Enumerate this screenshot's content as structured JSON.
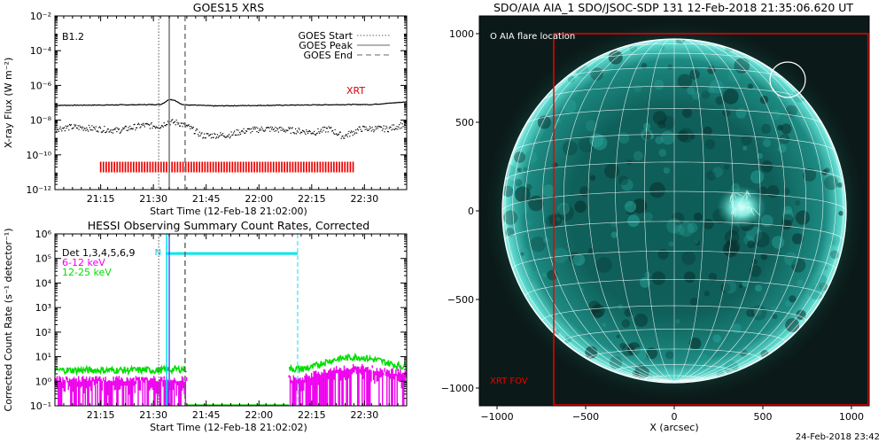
{
  "chart_data": [
    {
      "type": "line",
      "title": "GOES15 XRS",
      "xlabel": "Start Time (12-Feb-18 21:02:00)",
      "ylabel": "X-ray Flux (W m⁻²)",
      "yscale": "log",
      "ylim_exp": [
        -12,
        -2
      ],
      "xlim_min": [
        0,
        100
      ],
      "x_ticks": [
        {
          "t": 13,
          "label": "21:15"
        },
        {
          "t": 28,
          "label": "21:30"
        },
        {
          "t": 43,
          "label": "21:45"
        },
        {
          "t": 58,
          "label": "22:00"
        },
        {
          "t": 73,
          "label": "22:15"
        },
        {
          "t": 88,
          "label": "22:30"
        }
      ],
      "y_ticks": [
        {
          "exp": -12,
          "label": "10⁻¹²"
        },
        {
          "exp": -10,
          "label": "10⁻¹⁰"
        },
        {
          "exp": -8,
          "label": "10⁻⁸"
        },
        {
          "exp": -6,
          "label": "10⁻⁶"
        },
        {
          "exp": -4,
          "label": "10⁻⁴"
        },
        {
          "exp": -2,
          "label": "10⁻²"
        }
      ],
      "class_label": "B1.2",
      "legend": [
        {
          "name": "GOES Start",
          "style": "dotted"
        },
        {
          "name": "GOES Peak",
          "style": "solid"
        },
        {
          "name": "GOES End",
          "style": "dashed"
        }
      ],
      "markers": {
        "start": 29.5,
        "peak": 32.5,
        "end": 37.0
      },
      "long_channel_exp": [
        [
          0,
          -7.15
        ],
        [
          20,
          -7.12
        ],
        [
          30,
          -7.1
        ],
        [
          31,
          -7.0
        ],
        [
          32.5,
          -6.8
        ],
        [
          34,
          -6.85
        ],
        [
          36,
          -7.1
        ],
        [
          45,
          -7.18
        ],
        [
          60,
          -7.15
        ],
        [
          75,
          -7.12
        ],
        [
          85,
          -7.1
        ],
        [
          90,
          -7.1
        ],
        [
          100,
          -6.95
        ]
      ],
      "short_channel_exp": [
        [
          0,
          -8.5
        ],
        [
          5,
          -8.4
        ],
        [
          12,
          -8.5
        ],
        [
          18,
          -8.6
        ],
        [
          25,
          -8.3
        ],
        [
          30,
          -8.35
        ],
        [
          32,
          -8.1
        ],
        [
          35,
          -8.15
        ],
        [
          38,
          -8.4
        ],
        [
          42,
          -8.9
        ],
        [
          50,
          -8.85
        ],
        [
          52,
          -8.7
        ],
        [
          55,
          -8.6
        ],
        [
          60,
          -8.5
        ],
        [
          68,
          -8.6
        ],
        [
          74,
          -8.7
        ],
        [
          78,
          -8.5
        ],
        [
          82,
          -8.95
        ],
        [
          87,
          -8.5
        ],
        [
          95,
          -8.5
        ],
        [
          100,
          -8.2
        ]
      ],
      "xrt_label": "XRT",
      "xrt_range": [
        13,
        85
      ],
      "xrt_exp": -10.7
    },
    {
      "type": "line",
      "title": "HESSI Observing Summary Count Rates, Corrected",
      "xlabel": "Start Time (12-Feb-18 21:02:02)",
      "ylabel": "Corrected Count Rate (s⁻¹ detector⁻¹)",
      "yscale": "log",
      "ylim_exp": [
        -1,
        6
      ],
      "xlim_min": [
        0,
        100
      ],
      "x_ticks": [
        {
          "t": 13,
          "label": "21:15"
        },
        {
          "t": 28,
          "label": "21:30"
        },
        {
          "t": 43,
          "label": "21:45"
        },
        {
          "t": 58,
          "label": "22:00"
        },
        {
          "t": 73,
          "label": "22:15"
        },
        {
          "t": 88,
          "label": "22:30"
        }
      ],
      "y_ticks": [
        {
          "exp": -1,
          "label": "10⁻¹"
        },
        {
          "exp": 0,
          "label": "10⁰"
        },
        {
          "exp": 1,
          "label": "10¹"
        },
        {
          "exp": 2,
          "label": "10²"
        },
        {
          "exp": 3,
          "label": "10³"
        },
        {
          "exp": 4,
          "label": "10⁴"
        },
        {
          "exp": 5,
          "label": "10⁵"
        },
        {
          "exp": 6,
          "label": "10⁶"
        }
      ],
      "legend": [
        {
          "name": "Det 1,3,4,5,6,9",
          "color": "#000000"
        },
        {
          "name": "6-12 keV",
          "color": "#ee00ee"
        },
        {
          "name": "12-25 keV",
          "color": "#00dd00"
        }
      ],
      "night_label": "N",
      "night_range": [
        31.5,
        69
      ],
      "night_exp": 5.2,
      "markers": {
        "start": 29.5,
        "peak": 32.5,
        "end": 37.0
      },
      "green_level_exp": [
        [
          0,
          0.45
        ],
        [
          30,
          0.45
        ],
        [
          37,
          0.5
        ],
        [
          60,
          0.5
        ],
        [
          70,
          0.5
        ],
        [
          73,
          0.55
        ],
        [
          76,
          0.75
        ],
        [
          80,
          0.9
        ],
        [
          86,
          1.0
        ],
        [
          92,
          0.85
        ],
        [
          97,
          0.65
        ],
        [
          100,
          0.6
        ]
      ],
      "magenta_level_exp": [
        [
          0,
          0.05
        ],
        [
          30,
          0.05
        ],
        [
          37,
          0.05
        ],
        [
          60,
          0.05
        ],
        [
          70,
          0.1
        ],
        [
          75,
          0.3
        ],
        [
          80,
          0.45
        ],
        [
          86,
          0.55
        ],
        [
          92,
          0.45
        ],
        [
          100,
          0.3
        ]
      ],
      "data_gap": [
        37.5,
        66.5
      ]
    },
    {
      "type": "scatter",
      "title": "SDO/AIA AIA_1 SDO/JSOC-SDP 131 12-Feb-2018 21:35:06.620 UT",
      "xlabel": "X (arcsec)",
      "ylabel": "",
      "xlim": [
        -1100,
        1100
      ],
      "ylim": [
        -1100,
        1100
      ],
      "x_ticks": [
        -1000,
        -500,
        0,
        500,
        1000
      ],
      "y_ticks": [
        -1000,
        -500,
        0,
        500,
        1000
      ],
      "solar_radius_arcsec": 970,
      "flare_location": {
        "x": 640,
        "y": 740,
        "r": 100
      },
      "flare_label": "O AIA flare location",
      "active_region": {
        "x": 380,
        "y": 20
      },
      "xrt_fov": {
        "x": [
          -680,
          1100
        ],
        "y": [
          -1100,
          1000
        ]
      },
      "xrt_fov_label": "XRT FOV"
    }
  ],
  "footer": {
    "timestamp": "24-Feb-2018 23:42"
  }
}
